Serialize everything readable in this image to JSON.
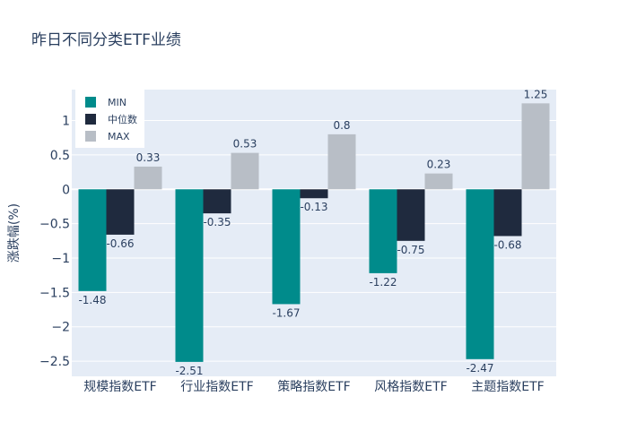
{
  "chart_data": {
    "type": "bar",
    "title": "昨日不同分类ETF业绩",
    "xlabel": "",
    "ylabel": "涨跌幅(%)",
    "categories": [
      "规模指数ETF",
      "行业指数ETF",
      "策略指数ETF",
      "风格指数ETF",
      "主题指数ETF"
    ],
    "series": [
      {
        "name": "MIN",
        "color": "#008b8b",
        "values": [
          -1.48,
          -2.51,
          -1.67,
          -1.22,
          -2.47
        ]
      },
      {
        "name": "中位数",
        "color": "#1f2a3e",
        "values": [
          -0.66,
          -0.35,
          -0.13,
          -0.75,
          -0.68
        ]
      },
      {
        "name": "MAX",
        "color": "#b8bec6",
        "values": [
          0.33,
          0.53,
          0.8,
          0.23,
          1.25
        ]
      }
    ],
    "ylim": [
      -2.72,
      1.45
    ],
    "yticks": [
      1,
      0.5,
      0,
      -0.5,
      -1,
      -1.5,
      -2,
      -2.5
    ],
    "ytick_labels": [
      "1",
      "0.5",
      "0",
      "−0.5",
      "−1",
      "−1.5",
      "−2",
      "−2.5"
    ],
    "grid": true,
    "legend_position": "top-left",
    "plot_bg": "#e5ecf6"
  }
}
